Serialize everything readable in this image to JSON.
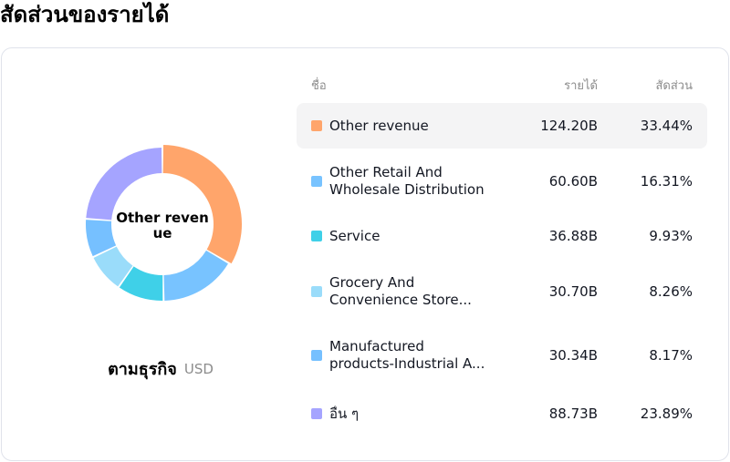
{
  "page_title": "สัดส่วนของรายได้",
  "caption": {
    "main": "ตามธุรกิจ",
    "unit": "USD"
  },
  "table_headers": {
    "name": "ชื่อ",
    "revenue": "รายได้",
    "share": "สัดส่วน"
  },
  "donut_center_label": "Other revenue",
  "chart_data": {
    "type": "pie",
    "title": "",
    "slices": [
      {
        "name": "Other revenue",
        "name_lines": [
          "Other revenue"
        ],
        "value": "124.20B",
        "value_num": 124.2,
        "share": "33.44%",
        "color": "#FFA56B"
      },
      {
        "name": "Other Retail And Wholesale Distribution",
        "name_lines": [
          "Other Retail And",
          "Wholesale Distribution"
        ],
        "value": "60.60B",
        "value_num": 60.6,
        "share": "16.31%",
        "color": "#78C3FF"
      },
      {
        "name": "Service",
        "name_lines": [
          "Service"
        ],
        "value": "36.88B",
        "value_num": 36.88,
        "share": "9.93%",
        "color": "#3FD0E8"
      },
      {
        "name": "Grocery And Convenience Store...",
        "name_lines": [
          "Grocery And",
          "Convenience Store..."
        ],
        "value": "30.70B",
        "value_num": 30.7,
        "share": "8.26%",
        "color": "#9ADCFA"
      },
      {
        "name": "Manufactured products-Industrial A...",
        "name_lines": [
          "Manufactured",
          "products-Industrial A..."
        ],
        "value": "30.34B",
        "value_num": 30.34,
        "share": "8.17%",
        "color": "#76C0FF"
      },
      {
        "name": "อื่น ๆ",
        "name_lines": [
          "อื่น ๆ"
        ],
        "value": "88.73B",
        "value_num": 88.73,
        "share": "23.89%",
        "color": "#A5A4FF"
      }
    ]
  }
}
